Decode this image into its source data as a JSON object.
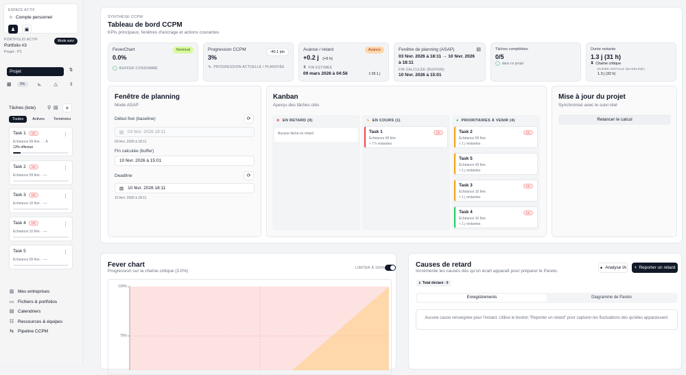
{
  "sidebar": {
    "space_label": "ESPACE ACTIF",
    "space_name": "Compte personnel",
    "portfolio_label": "PORTFOLIO ACTIF",
    "portfolio_name": "Portfolio #3",
    "project": "Projet : P1",
    "mode_badge": "Mode suivi",
    "select_value": "Projet",
    "pct_badge": "3%",
    "tasks_title": "Tâches (liste)",
    "filters": [
      "Toutes",
      "Actives",
      "Terminées"
    ],
    "tasks": [
      {
        "name": "Task 1",
        "badge": "CC",
        "due": "Échéance 09 févr. → A",
        "extra": "13% effectué",
        "progress": 0.13
      },
      {
        "name": "Task 2",
        "badge": "CC",
        "due": "Échéance 09 févr. · —",
        "progress": 0
      },
      {
        "name": "Task 3",
        "badge": "CC",
        "due": "Échéance 10 févr. · —",
        "progress": 0
      },
      {
        "name": "Task 4",
        "badge": "CC",
        "due": "Échéance 10 févr. · —",
        "progress": 0
      },
      {
        "name": "Task 5",
        "badge": "",
        "due": "Échéance 09 févr. · —",
        "progress": 0
      }
    ],
    "nav": [
      {
        "label": "Mes entreprises",
        "icon": "building-icon"
      },
      {
        "label": "Fichiers & portfolios",
        "icon": "folder-icon"
      },
      {
        "label": "Calendriers",
        "icon": "calendar-icon"
      },
      {
        "label": "Ressources & équipes",
        "icon": "users-icon"
      },
      {
        "label": "Pipeline CCPM",
        "icon": "pipeline-icon"
      }
    ]
  },
  "header": {
    "eyebrow": "SYNTHÈSE CCPM",
    "title": "Tableau de bord CCPM",
    "subtitle": "KPIs principaux, fenêtres d'ancrage et actions courantes"
  },
  "kpis": {
    "fever": {
      "label": "FeverChart",
      "value": "0.0%",
      "badge": "Nominal",
      "foot": "BUFFER CONSOMMÉ"
    },
    "progress": {
      "label": "Progression CCPM",
      "value": "3%",
      "badge": "-40.1 pts",
      "foot": "PROGRESSION ACTUELLE / PLANIFIÉE"
    },
    "advance": {
      "label": "Avance / retard",
      "value": "+0.2 j",
      "sub": "(+5 h)",
      "badge": "Avance",
      "foot": "FIN ESTIMÉE",
      "date": "09 mars 2026 à 04:56",
      "delta": "± 29.1 j"
    },
    "window": {
      "label": "Fenêtre de planning (ASAP)",
      "value": "03 févr. 2026 à 18:11 → 10 févr. 2026 à 18:11",
      "foot": "FIN CALCULÉE (BUFFER)",
      "date": "10 févr. 2026 à 15:01"
    },
    "completed": {
      "label": "Tâches complétées",
      "value": "0/5",
      "foot": "dans ce projet"
    },
    "remaining": {
      "label": "Durée restante",
      "value": "1.3 j (31 h)",
      "sub": "Chaîne critique",
      "foot": "DURÉE INITIALE (BASELINE)",
      "date": "1.3 j (32 h)"
    }
  },
  "planning": {
    "title": "Fenêtre de planning",
    "subtitle": "Mode ASAP",
    "start_label": "Début fixé (baseline)",
    "start_value": "03 févr. 2026 18:11",
    "start_hint": "03 févr. 2026 à 18:11",
    "end_label": "Fin calculée (buffer)",
    "end_value": "10 févr. 2026 à 15:01",
    "deadline_label": "Deadline",
    "deadline_value": "10 févr. 2026 18:11",
    "deadline_hint": "10 févr. 2026 à 18:11"
  },
  "kanban": {
    "title": "Kanban",
    "subtitle": "Aperçu des tâches clés",
    "late": {
      "label": "EN RETARD (0)",
      "empty": "Aucune tâche en retard"
    },
    "current": {
      "label": "EN COURS (1)",
      "cards": [
        {
          "name": "Task 1",
          "badge": "CC",
          "due": "Échéance 09 févr.",
          "rest": "≈ 7 h restantes"
        }
      ]
    },
    "upcoming": {
      "label": "PRIORITAIRES À VENIR (4)",
      "cards": [
        {
          "name": "Task 2",
          "badge": "CC",
          "due": "Échéance 09 févr.",
          "rest": "≈ 1 j restantes"
        },
        {
          "name": "Task 5",
          "badge": "",
          "due": "Échéance 09 févr.",
          "rest": "≈ 1 j restantes"
        },
        {
          "name": "Task 3",
          "badge": "CC",
          "due": "Échéance 10 févr.",
          "rest": "≈ 1 j restantes"
        },
        {
          "name": "Task 4",
          "badge": "CC",
          "due": "Échéance 10 févr.",
          "rest": "≈ 1 j restantes"
        }
      ]
    }
  },
  "update": {
    "title": "Mise à jour du projet",
    "subtitle": "Synchronisé avec le suivi réel",
    "button": "Relancer le calcul"
  },
  "fever_chart": {
    "title": "Fever chart",
    "subtitle": "Progression sur la chaîne critique (3.0%)",
    "toggle_label": "LIMITER À 100%",
    "ticks": [
      "100%",
      "75%"
    ]
  },
  "causes": {
    "title": "Causes de retard",
    "subtitle": "Incrémente les causes dès qu'un écart apparaît pour préparer le Pareto.",
    "ai_button": "Analyse IA",
    "report_button": "Reporter un retard",
    "total": "Total déclaré : 0",
    "tabs": [
      "Enregistrements",
      "Diagramme de Pareto"
    ],
    "empty": "Aucune cause renseignée pour l'instant. Utilise le bouton \"Reporter un retard\" pour capturer les fluctuations dès qu'elles apparaissent."
  },
  "colors": {
    "accent": "#111827",
    "nominal": "#d9f99d",
    "advance": "#fed7aa",
    "late": "#ef4444",
    "current": "#f59e0b",
    "upcoming": "#22c55e"
  }
}
